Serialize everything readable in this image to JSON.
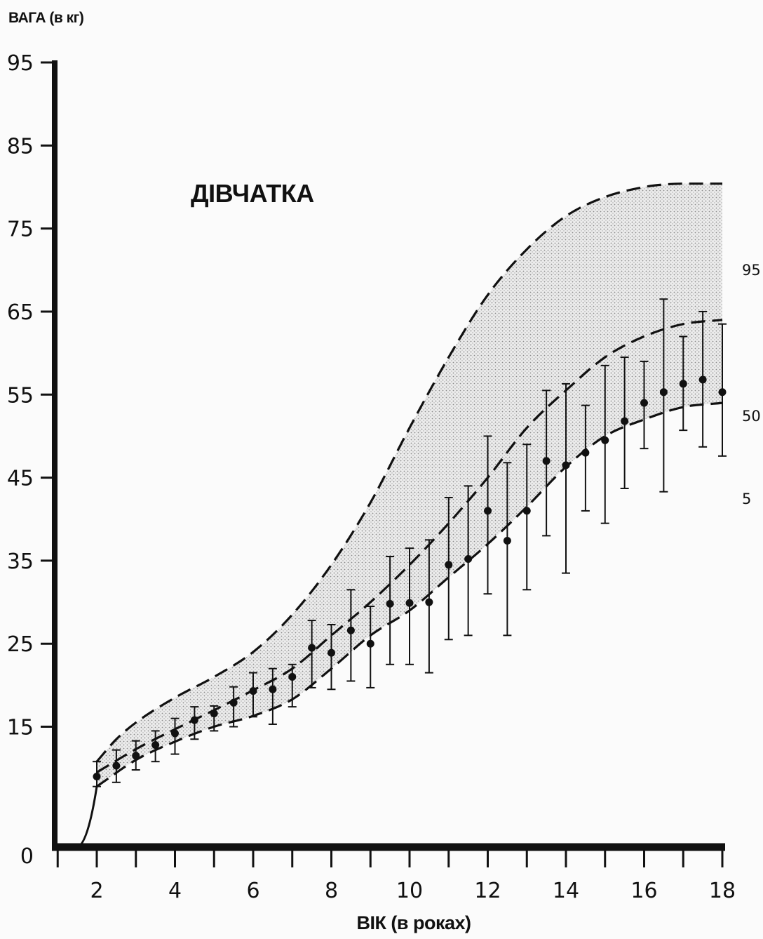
{
  "chart_data": {
    "type": "line",
    "title": "ДІВЧАТКА",
    "ylabel": "ВАГА (в кг)",
    "xlabel": "ВІК (в роках)",
    "xlim": [
      1,
      18
    ],
    "ylim": [
      0,
      95
    ],
    "y_ticks": [
      "95",
      "85",
      "75",
      "65",
      "55",
      "45",
      "35",
      "25",
      "15",
      "0"
    ],
    "x_ticks": [
      "2",
      "4",
      "6",
      "8",
      "10",
      "12",
      "14",
      "16",
      "18"
    ],
    "series": [
      {
        "name": "95",
        "x": [
          2,
          2.5,
          3,
          4,
          5,
          6,
          7,
          8,
          9,
          10,
          11,
          12,
          13,
          14,
          15,
          16,
          16.5,
          17,
          18
        ],
        "y": [
          10.8,
          13.5,
          15.5,
          18.5,
          21.0,
          24.0,
          28.5,
          34.5,
          42.0,
          51.0,
          59.5,
          67.0,
          72.5,
          76.5,
          78.8,
          80.0,
          80.3,
          80.4,
          80.4
        ]
      },
      {
        "name": "50",
        "x": [
          2,
          3,
          4,
          5,
          6,
          7,
          8,
          9,
          10,
          11,
          12,
          13,
          14,
          15,
          16,
          17,
          18
        ],
        "y": [
          9.5,
          12.3,
          14.7,
          17.0,
          19.4,
          22.0,
          26.0,
          30.0,
          34.5,
          39.5,
          45.0,
          51.0,
          55.5,
          59.5,
          62.0,
          63.5,
          64.0
        ]
      },
      {
        "name": "5",
        "x": [
          2,
          3,
          4,
          5,
          6,
          7,
          8,
          9,
          10,
          11,
          12,
          13,
          14,
          15,
          16,
          17,
          18
        ],
        "y": [
          7.8,
          11.0,
          13.2,
          15.0,
          16.3,
          18.3,
          22.0,
          26.0,
          29.0,
          33.0,
          37.0,
          41.5,
          46.3,
          50.0,
          52.0,
          53.5,
          54.0
        ]
      }
    ],
    "observations": {
      "x": [
        2,
        2.5,
        3,
        3.5,
        4,
        4.5,
        5,
        5.5,
        6,
        6.5,
        7,
        7.5,
        8,
        8.5,
        9,
        9.5,
        10,
        10.5,
        11,
        11.5,
        12,
        12.5,
        13,
        13.5,
        14,
        14.5,
        15,
        15.5,
        16,
        16.5,
        17,
        17.5,
        18
      ],
      "mean": [
        9.0,
        10.3,
        11.5,
        12.8,
        14.2,
        15.8,
        16.6,
        17.9,
        19.3,
        19.5,
        21.0,
        24.5,
        23.9,
        26.6,
        25.0,
        29.8,
        29.9,
        30.0,
        34.5,
        35.2,
        41.0,
        37.4,
        41.0,
        47.0,
        46.5,
        48.0,
        49.5,
        51.8,
        54.0,
        55.3,
        56.3,
        56.8,
        55.3
      ],
      "lower": [
        7.8,
        8.3,
        9.8,
        10.8,
        11.7,
        13.5,
        14.5,
        15.0,
        16.2,
        15.3,
        17.4,
        19.7,
        19.5,
        20.5,
        19.7,
        22.5,
        22.5,
        21.5,
        25.5,
        26.0,
        31.0,
        26.0,
        31.5,
        38.0,
        33.5,
        41.0,
        39.5,
        43.7,
        48.5,
        43.3,
        50.7,
        48.7,
        47.6
      ],
      "upper": [
        10.8,
        12.2,
        13.3,
        14.5,
        16.0,
        17.4,
        17.5,
        19.8,
        21.5,
        22.0,
        22.5,
        27.8,
        27.3,
        31.5,
        29.5,
        35.5,
        36.5,
        37.5,
        42.6,
        44.0,
        50.0,
        46.8,
        49.0,
        55.5,
        56.3,
        53.7,
        58.5,
        59.5,
        59.0,
        66.5,
        62.0,
        65.0,
        63.5
      ]
    },
    "band": {
      "between": [
        "95",
        "5"
      ],
      "fill": "stippled gray"
    },
    "colors": {
      "ink": "#111111",
      "band": "#c8c8c8",
      "background": "#fbfbfb"
    },
    "grid": false,
    "legend": "curve labels at right end"
  }
}
